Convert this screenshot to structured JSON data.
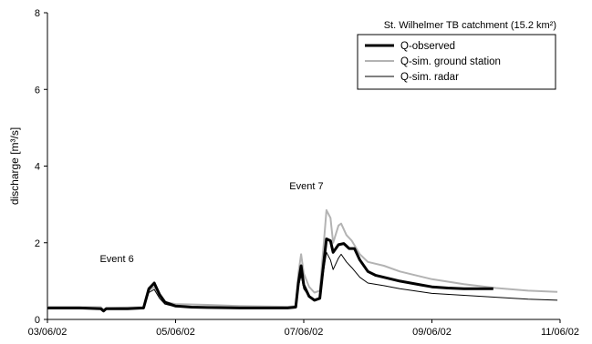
{
  "chart_data": {
    "type": "line",
    "title": "",
    "catchment_label": "St. Wilhelmer TB catchment (15.2 km²)",
    "xlabel": "",
    "ylabel": "discharge [m³/s]",
    "x_unit": "date (dd/mm/yy)",
    "xlim": [
      "2002-06-03",
      "2002-06-11"
    ],
    "ylim": [
      0,
      8
    ],
    "x_ticks": [
      {
        "value": "2002-06-03",
        "label": "03/06/02"
      },
      {
        "value": "2002-06-05",
        "label": "05/06/02"
      },
      {
        "value": "2002-06-07",
        "label": "07/06/02"
      },
      {
        "value": "2002-06-09",
        "label": "09/06/02"
      },
      {
        "value": "2002-06-11",
        "label": "11/06/02"
      }
    ],
    "y_ticks": [
      0,
      2,
      4,
      6,
      8
    ],
    "grid": false,
    "legend_position": "top-right",
    "annotations": [
      {
        "text": "Event 6",
        "x": "2002-06-04 02:00",
        "y": 1.5
      },
      {
        "text": "Event 7",
        "x": "2002-06-07 01:00",
        "y": 3.4
      }
    ],
    "series": [
      {
        "name": "Q-observed",
        "color": "#000000",
        "style": "thick",
        "points": [
          [
            "2002-06-03 00:00",
            0.3
          ],
          [
            "2002-06-03 12:00",
            0.3
          ],
          [
            "2002-06-03 20:00",
            0.28
          ],
          [
            "2002-06-03 21:00",
            0.22
          ],
          [
            "2002-06-03 22:00",
            0.28
          ],
          [
            "2002-06-04 06:00",
            0.28
          ],
          [
            "2002-06-04 12:00",
            0.3
          ],
          [
            "2002-06-04 14:00",
            0.8
          ],
          [
            "2002-06-04 16:00",
            0.95
          ],
          [
            "2002-06-04 18:00",
            0.65
          ],
          [
            "2002-06-04 20:00",
            0.45
          ],
          [
            "2002-06-05 00:00",
            0.35
          ],
          [
            "2002-06-05 06:00",
            0.32
          ],
          [
            "2002-06-05 12:00",
            0.31
          ],
          [
            "2002-06-06 00:00",
            0.3
          ],
          [
            "2002-06-06 12:00",
            0.3
          ],
          [
            "2002-06-06 18:00",
            0.3
          ],
          [
            "2002-06-06 21:00",
            0.32
          ],
          [
            "2002-06-06 22:00",
            0.95
          ],
          [
            "2002-06-06 23:00",
            1.4
          ],
          [
            "2002-06-07 00:00",
            0.9
          ],
          [
            "2002-06-07 02:00",
            0.6
          ],
          [
            "2002-06-07 04:00",
            0.5
          ],
          [
            "2002-06-07 06:00",
            0.55
          ],
          [
            "2002-06-07 07:30",
            1.5
          ],
          [
            "2002-06-07 08:30",
            2.1
          ],
          [
            "2002-06-07 10:00",
            2.05
          ],
          [
            "2002-06-07 11:00",
            1.75
          ],
          [
            "2002-06-07 13:00",
            1.95
          ],
          [
            "2002-06-07 15:00",
            1.98
          ],
          [
            "2002-06-07 17:00",
            1.85
          ],
          [
            "2002-06-07 19:00",
            1.85
          ],
          [
            "2002-06-07 21:00",
            1.55
          ],
          [
            "2002-06-08 00:00",
            1.25
          ],
          [
            "2002-06-08 03:00",
            1.15
          ],
          [
            "2002-06-08 06:00",
            1.1
          ],
          [
            "2002-06-08 09:00",
            1.05
          ],
          [
            "2002-06-08 12:00",
            1.0
          ],
          [
            "2002-06-08 16:00",
            0.95
          ],
          [
            "2002-06-08 20:00",
            0.9
          ],
          [
            "2002-06-09 00:00",
            0.85
          ],
          [
            "2002-06-09 06:00",
            0.82
          ],
          [
            "2002-06-09 12:00",
            0.8
          ],
          [
            "2002-06-09 23:00",
            0.8
          ]
        ]
      },
      {
        "name": "Q-sim. ground station",
        "color": "#b3b3b3",
        "style": "medium",
        "points": [
          [
            "2002-06-03 00:00",
            0.32
          ],
          [
            "2002-06-03 20:00",
            0.32
          ],
          [
            "2002-06-03 21:00",
            0.25
          ],
          [
            "2002-06-03 22:00",
            0.3
          ],
          [
            "2002-06-04 12:00",
            0.32
          ],
          [
            "2002-06-04 14:00",
            0.75
          ],
          [
            "2002-06-04 16:00",
            0.85
          ],
          [
            "2002-06-04 18:00",
            0.6
          ],
          [
            "2002-06-04 20:00",
            0.45
          ],
          [
            "2002-06-05 00:00",
            0.4
          ],
          [
            "2002-06-05 12:00",
            0.38
          ],
          [
            "2002-06-06 00:00",
            0.35
          ],
          [
            "2002-06-06 18:00",
            0.33
          ],
          [
            "2002-06-06 21:00",
            0.35
          ],
          [
            "2002-06-06 22:00",
            1.2
          ],
          [
            "2002-06-06 23:00",
            1.7
          ],
          [
            "2002-06-07 00:00",
            1.2
          ],
          [
            "2002-06-07 02:00",
            0.85
          ],
          [
            "2002-06-07 04:00",
            0.7
          ],
          [
            "2002-06-07 06:00",
            0.75
          ],
          [
            "2002-06-07 07:30",
            2.0
          ],
          [
            "2002-06-07 08:30",
            2.85
          ],
          [
            "2002-06-07 10:00",
            2.65
          ],
          [
            "2002-06-07 11:00",
            2.0
          ],
          [
            "2002-06-07 13:00",
            2.45
          ],
          [
            "2002-06-07 14:00",
            2.5
          ],
          [
            "2002-06-07 16:00",
            2.2
          ],
          [
            "2002-06-07 18:00",
            2.05
          ],
          [
            "2002-06-07 21:00",
            1.7
          ],
          [
            "2002-06-08 00:00",
            1.5
          ],
          [
            "2002-06-08 06:00",
            1.4
          ],
          [
            "2002-06-08 12:00",
            1.25
          ],
          [
            "2002-06-09 00:00",
            1.05
          ],
          [
            "2002-06-09 12:00",
            0.92
          ],
          [
            "2002-06-10 00:00",
            0.82
          ],
          [
            "2002-06-10 12:00",
            0.75
          ],
          [
            "2002-06-10 23:00",
            0.72
          ]
        ]
      },
      {
        "name": "Q-sim. radar",
        "color": "#000000",
        "style": "thin",
        "points": [
          [
            "2002-06-03 00:00",
            0.28
          ],
          [
            "2002-06-03 20:00",
            0.28
          ],
          [
            "2002-06-03 21:00",
            0.2
          ],
          [
            "2002-06-03 22:00",
            0.26
          ],
          [
            "2002-06-04 12:00",
            0.28
          ],
          [
            "2002-06-04 14:00",
            0.7
          ],
          [
            "2002-06-04 16:00",
            0.78
          ],
          [
            "2002-06-04 18:00",
            0.55
          ],
          [
            "2002-06-04 20:00",
            0.4
          ],
          [
            "2002-06-05 00:00",
            0.33
          ],
          [
            "2002-06-05 12:00",
            0.31
          ],
          [
            "2002-06-06 00:00",
            0.3
          ],
          [
            "2002-06-06 18:00",
            0.3
          ],
          [
            "2002-06-06 21:00",
            0.31
          ],
          [
            "2002-06-06 22:00",
            0.85
          ],
          [
            "2002-06-06 23:00",
            1.15
          ],
          [
            "2002-06-07 00:00",
            0.8
          ],
          [
            "2002-06-07 02:00",
            0.6
          ],
          [
            "2002-06-07 04:00",
            0.5
          ],
          [
            "2002-06-07 06:00",
            0.55
          ],
          [
            "2002-06-07 07:30",
            1.3
          ],
          [
            "2002-06-07 08:30",
            1.75
          ],
          [
            "2002-06-07 10:00",
            1.55
          ],
          [
            "2002-06-07 11:00",
            1.3
          ],
          [
            "2002-06-07 13:00",
            1.6
          ],
          [
            "2002-06-07 14:00",
            1.7
          ],
          [
            "2002-06-07 16:00",
            1.5
          ],
          [
            "2002-06-07 18:00",
            1.35
          ],
          [
            "2002-06-07 21:00",
            1.1
          ],
          [
            "2002-06-08 00:00",
            0.95
          ],
          [
            "2002-06-08 06:00",
            0.88
          ],
          [
            "2002-06-08 12:00",
            0.8
          ],
          [
            "2002-06-09 00:00",
            0.68
          ],
          [
            "2002-06-09 12:00",
            0.63
          ],
          [
            "2002-06-10 00:00",
            0.58
          ],
          [
            "2002-06-10 12:00",
            0.53
          ],
          [
            "2002-06-10 23:00",
            0.5
          ]
        ]
      }
    ]
  }
}
